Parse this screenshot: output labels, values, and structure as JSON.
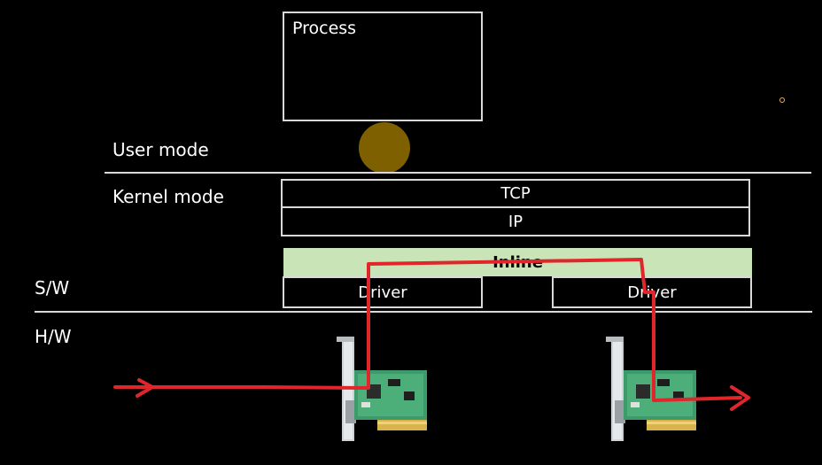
{
  "process": {
    "label": "Process"
  },
  "modes": {
    "user": "User mode",
    "kernel": "Kernel mode"
  },
  "layers": {
    "sw": "S/W",
    "hw": "H/W"
  },
  "stack": {
    "tcp": "TCP",
    "ip": "IP",
    "inline": "Inline"
  },
  "drivers": [
    {
      "label": "Driver"
    },
    {
      "label": "Driver"
    }
  ],
  "colors": {
    "background": "#000000",
    "box_border": "#d9d9d9",
    "inline_fill": "#c9e4b7",
    "socket_circle": "#7f6000",
    "path_red": "#e0262a",
    "nic_board": "#3d9a6a"
  },
  "icons": [
    "network-card-icon",
    "network-card-icon"
  ]
}
